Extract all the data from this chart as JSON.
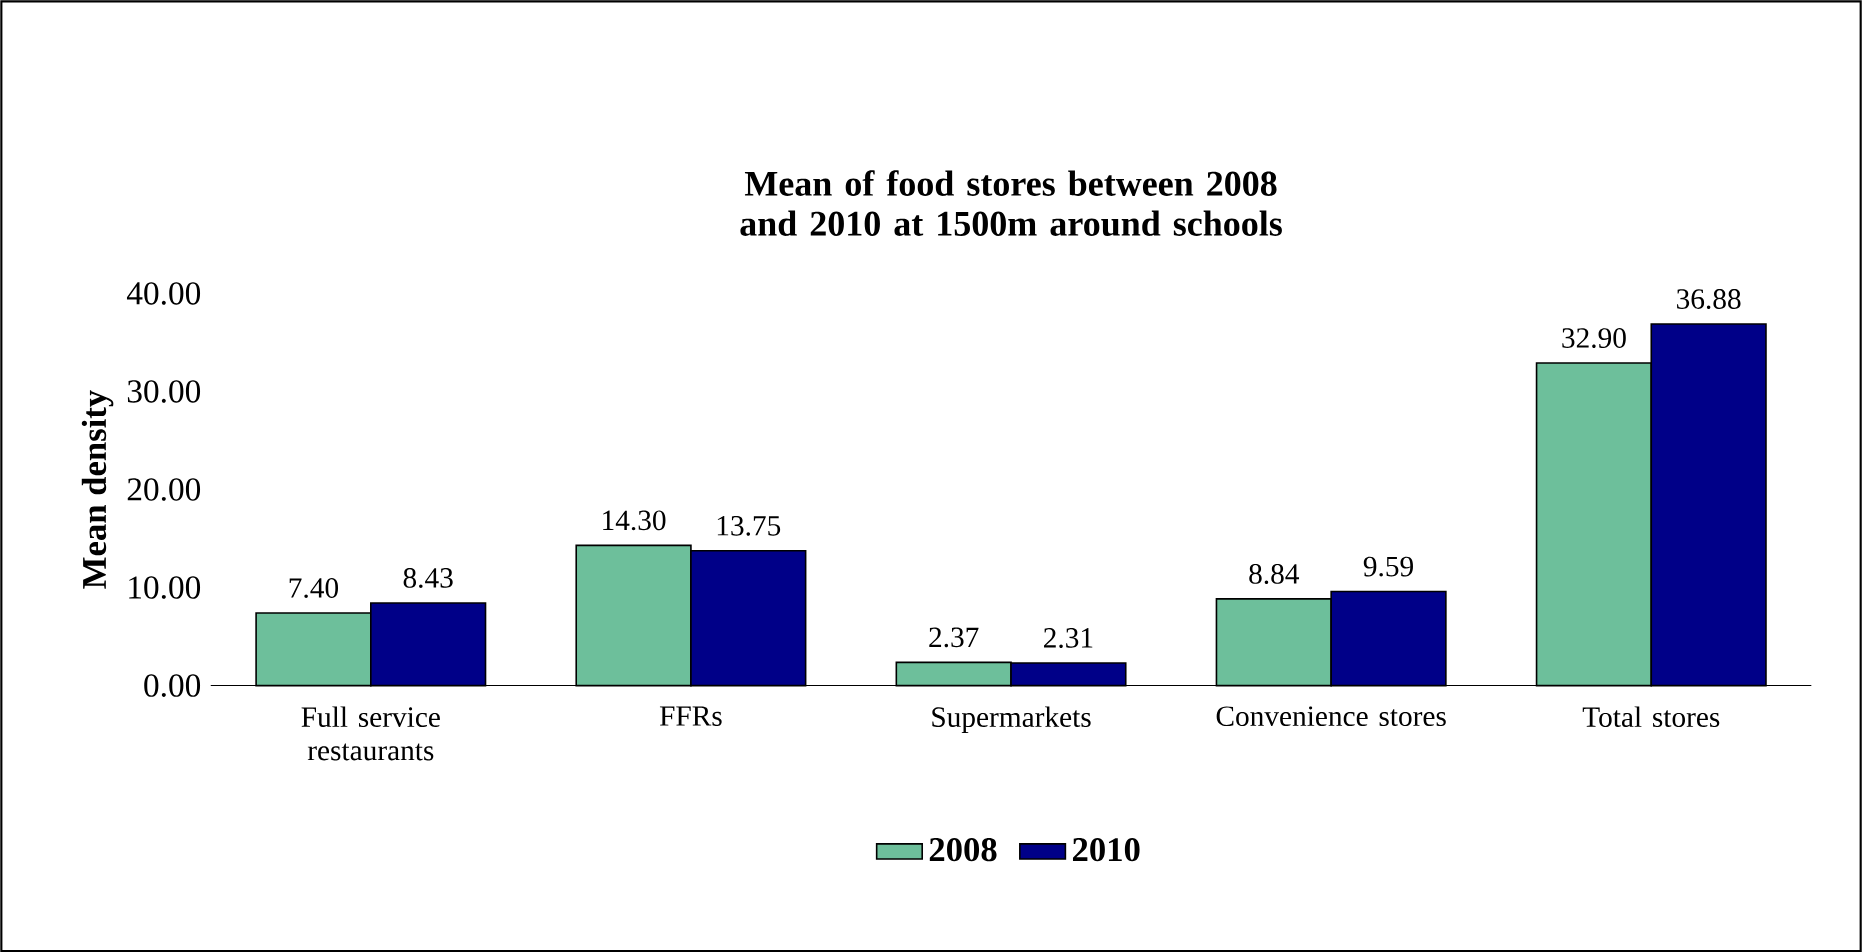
{
  "chart_data": {
    "type": "bar",
    "title": "Mean of food stores between 2008 and 2010 at 1500m around schools",
    "ylabel": "Mean density",
    "categories": [
      "Full service restaurants",
      "FFRs",
      "Supermarkets",
      "Convenience stores",
      "Total stores"
    ],
    "series": [
      {
        "name": "2008",
        "color": "#6dbf9b",
        "values": [
          7.4,
          14.3,
          2.37,
          8.84,
          32.9
        ],
        "value_labels": [
          "7.40",
          "14.30",
          "2.37",
          "8.84",
          "32.90"
        ]
      },
      {
        "name": "2010",
        "color": "#000088",
        "values": [
          8.43,
          13.75,
          2.31,
          9.59,
          36.88
        ],
        "value_labels": [
          "8.43",
          "13.75",
          "2.31",
          "9.59",
          "36.88"
        ]
      }
    ],
    "ylim": [
      0,
      40
    ],
    "yticks": [
      {
        "value": 0,
        "label": "0.00"
      },
      {
        "value": 10,
        "label": "10.00"
      },
      {
        "value": 20,
        "label": "20.00"
      },
      {
        "value": 30,
        "label": "30.00"
      },
      {
        "value": 40,
        "label": "40.00"
      }
    ],
    "legend": "bottom"
  }
}
